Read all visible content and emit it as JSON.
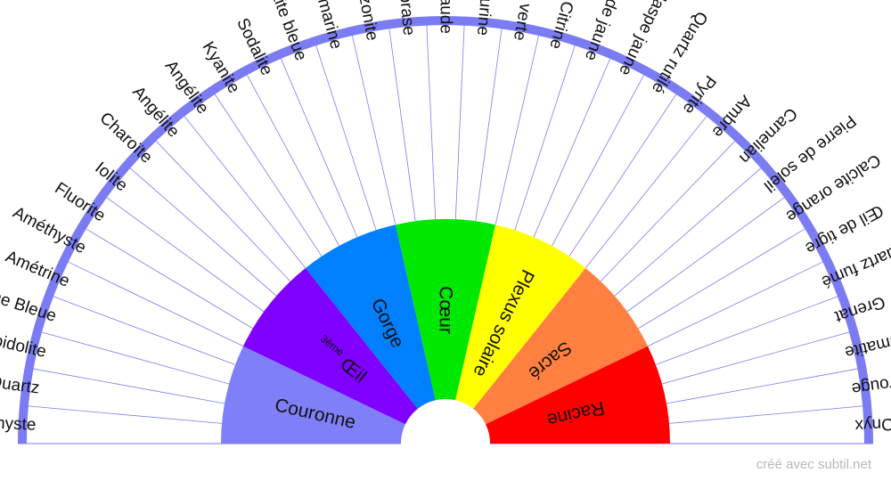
{
  "colors": {
    "rim": "#7b7bf2",
    "spoke": "#7b7bf2",
    "background": "#ffffff",
    "text": "#111111",
    "credit": "#b8b8b8"
  },
  "chakras": [
    {
      "label": "Couronne",
      "color": "#7f7ff7"
    },
    {
      "label": "Œil",
      "superscript_prefix": "3ème",
      "color": "#7f00ff"
    },
    {
      "label": "Gorge",
      "color": "#0080ff"
    },
    {
      "label": "Cœur",
      "color": "#00e800"
    },
    {
      "label": "Plexus solaire",
      "color": "#ffff00"
    },
    {
      "label": "Sacré",
      "color": "#ff8040"
    },
    {
      "label": "Racine",
      "color": "#ff0000"
    }
  ],
  "stones": [
    "Améthyste",
    "Quartz",
    "Lépidolite",
    "Calcédoine Bleue",
    "Amétrine",
    "Améthyste",
    "Fluorite",
    "Iolite",
    "Charoïte",
    "Angélite",
    "Angélite",
    "Kyanite",
    "Sodalite",
    "Apatite bleue",
    "Aigue-marine",
    "Amazonite",
    "Chrysoprase",
    "Emeraude",
    "Aventurine",
    "Calcite verte",
    "Citrine",
    "Jade jaune",
    "Jaspe jaune",
    "Quartz rutilé",
    "Pyrite",
    "Ambre",
    "Carnelian",
    "Pierre de soleil",
    "Calcite orange",
    "Œil de tigre",
    "Quartz fumé",
    "Grenat",
    "Hématite",
    "Jaspe rouge",
    "Onyx"
  ],
  "credit": "créé avec subtil.net"
}
